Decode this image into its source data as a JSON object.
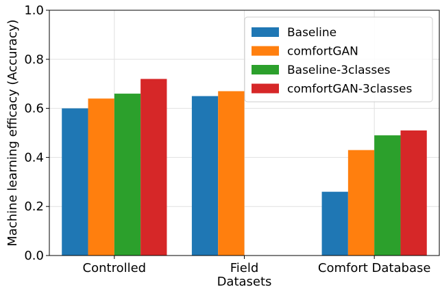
{
  "chart_data": {
    "type": "bar",
    "categories": [
      "Controlled",
      "Field",
      "Comfort Database"
    ],
    "series": [
      {
        "name": "Baseline",
        "values": [
          0.6,
          0.65,
          0.26
        ],
        "color": "#1f77b4"
      },
      {
        "name": "comfortGAN",
        "values": [
          0.64,
          0.67,
          0.43
        ],
        "color": "#ff7f0e"
      },
      {
        "name": "Baseline-3classes",
        "values": [
          0.66,
          null,
          0.49
        ],
        "color": "#2ca02c"
      },
      {
        "name": "comfortGAN-3classes",
        "values": [
          0.72,
          null,
          0.51
        ],
        "color": "#d62728"
      }
    ],
    "xlabel": "Datasets",
    "ylabel": "Machine learning efficacy (Accuracy)",
    "ylim": [
      0,
      1.0
    ],
    "yticks": [
      0.0,
      0.2,
      0.4,
      0.6,
      0.8,
      1.0
    ],
    "grid": true,
    "legend_position": "top-right"
  }
}
